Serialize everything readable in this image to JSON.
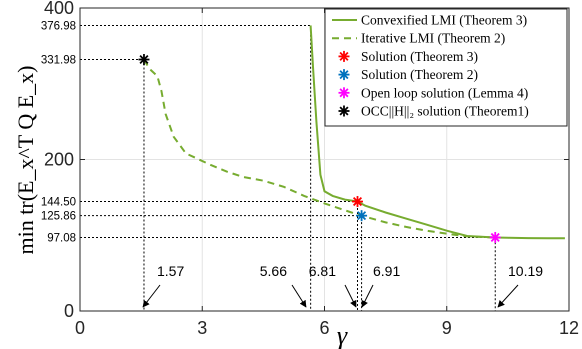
{
  "chart_data": {
    "type": "line",
    "xlabel": "γ",
    "ylabel": "min tr(E_x^T Q E_x)",
    "xlim": [
      0,
      12
    ],
    "ylim": [
      0,
      400
    ],
    "xticks": [
      0,
      3,
      6,
      9,
      12
    ],
    "yticks": [
      0,
      200,
      400
    ],
    "grid": true,
    "legend_position": "top-right",
    "series": [
      {
        "name": "Convexified LMI (Theorem 3)",
        "style": "solid",
        "color": "#77ac30",
        "x": [
          5.66,
          5.72,
          5.8,
          5.9,
          6.0,
          6.2,
          6.5,
          6.81,
          7.0,
          7.5,
          8.0,
          8.5,
          9.0,
          9.5,
          10.19,
          10.5,
          11.0,
          11.5,
          11.9
        ],
        "y": [
          376.98,
          320,
          250,
          180,
          158,
          152,
          147,
          144.5,
          139,
          130,
          122,
          114,
          106,
          99,
          97.08,
          96.6,
          96.3,
          96.1,
          96.0
        ]
      },
      {
        "name": "Iterative LMI (Theorem 2)",
        "style": "dashed",
        "color": "#77ac30",
        "x": [
          1.57,
          1.7,
          1.9,
          2.0,
          2.1,
          2.3,
          2.6,
          2.8,
          3.2,
          3.6,
          4.0,
          4.5,
          5.0,
          5.5,
          6.0,
          6.5,
          6.91,
          7.5,
          8.0,
          8.5,
          9.0,
          9.5,
          10.19
        ],
        "y": [
          331.98,
          320,
          310,
          290,
          260,
          230,
          208,
          203,
          193,
          184,
          177,
          172,
          164,
          152,
          142,
          133,
          125.86,
          117,
          111,
          106,
          102,
          98.5,
          97.08
        ]
      }
    ],
    "markers": [
      {
        "name": "Solution (Theorem 3)",
        "x": 6.81,
        "y": 144.5,
        "color": "#ff0000"
      },
      {
        "name": "Solution (Theorem 2)",
        "x": 6.91,
        "y": 125.86,
        "color": "#0072bd"
      },
      {
        "name": "Open loop solution (Lemma 4)",
        "x": 10.19,
        "y": 97.08,
        "color": "#ff00ff"
      },
      {
        "name": "OCC||H||₂ solution (Theorem1)",
        "x": 1.57,
        "y": 331.98,
        "color": "#000000"
      }
    ],
    "y_reference_labels": [
      "376.98",
      "331.98",
      "144.50",
      "125.86",
      "97.08"
    ],
    "x_reference_labels": [
      "1.57",
      "5.66",
      "6.81",
      "6.91",
      "10.19"
    ],
    "reference_lines": [
      {
        "x": 5.66,
        "y": 376.98,
        "label": "376.98"
      },
      {
        "x": 1.57,
        "y": 331.98,
        "label": "331.98"
      },
      {
        "x": 6.81,
        "y": 144.5,
        "label": "144.50"
      },
      {
        "x": 6.91,
        "y": 125.86,
        "label": "125.86"
      },
      {
        "x": 10.19,
        "y": 97.08,
        "label": "97.08"
      }
    ],
    "annotations": [
      {
        "label": "1.57",
        "x": 1.57
      },
      {
        "label": "5.66",
        "x": 5.66
      },
      {
        "label": "6.81",
        "x": 6.81
      },
      {
        "label": "6.91",
        "x": 6.91
      },
      {
        "label": "10.19",
        "x": 10.19
      }
    ]
  }
}
